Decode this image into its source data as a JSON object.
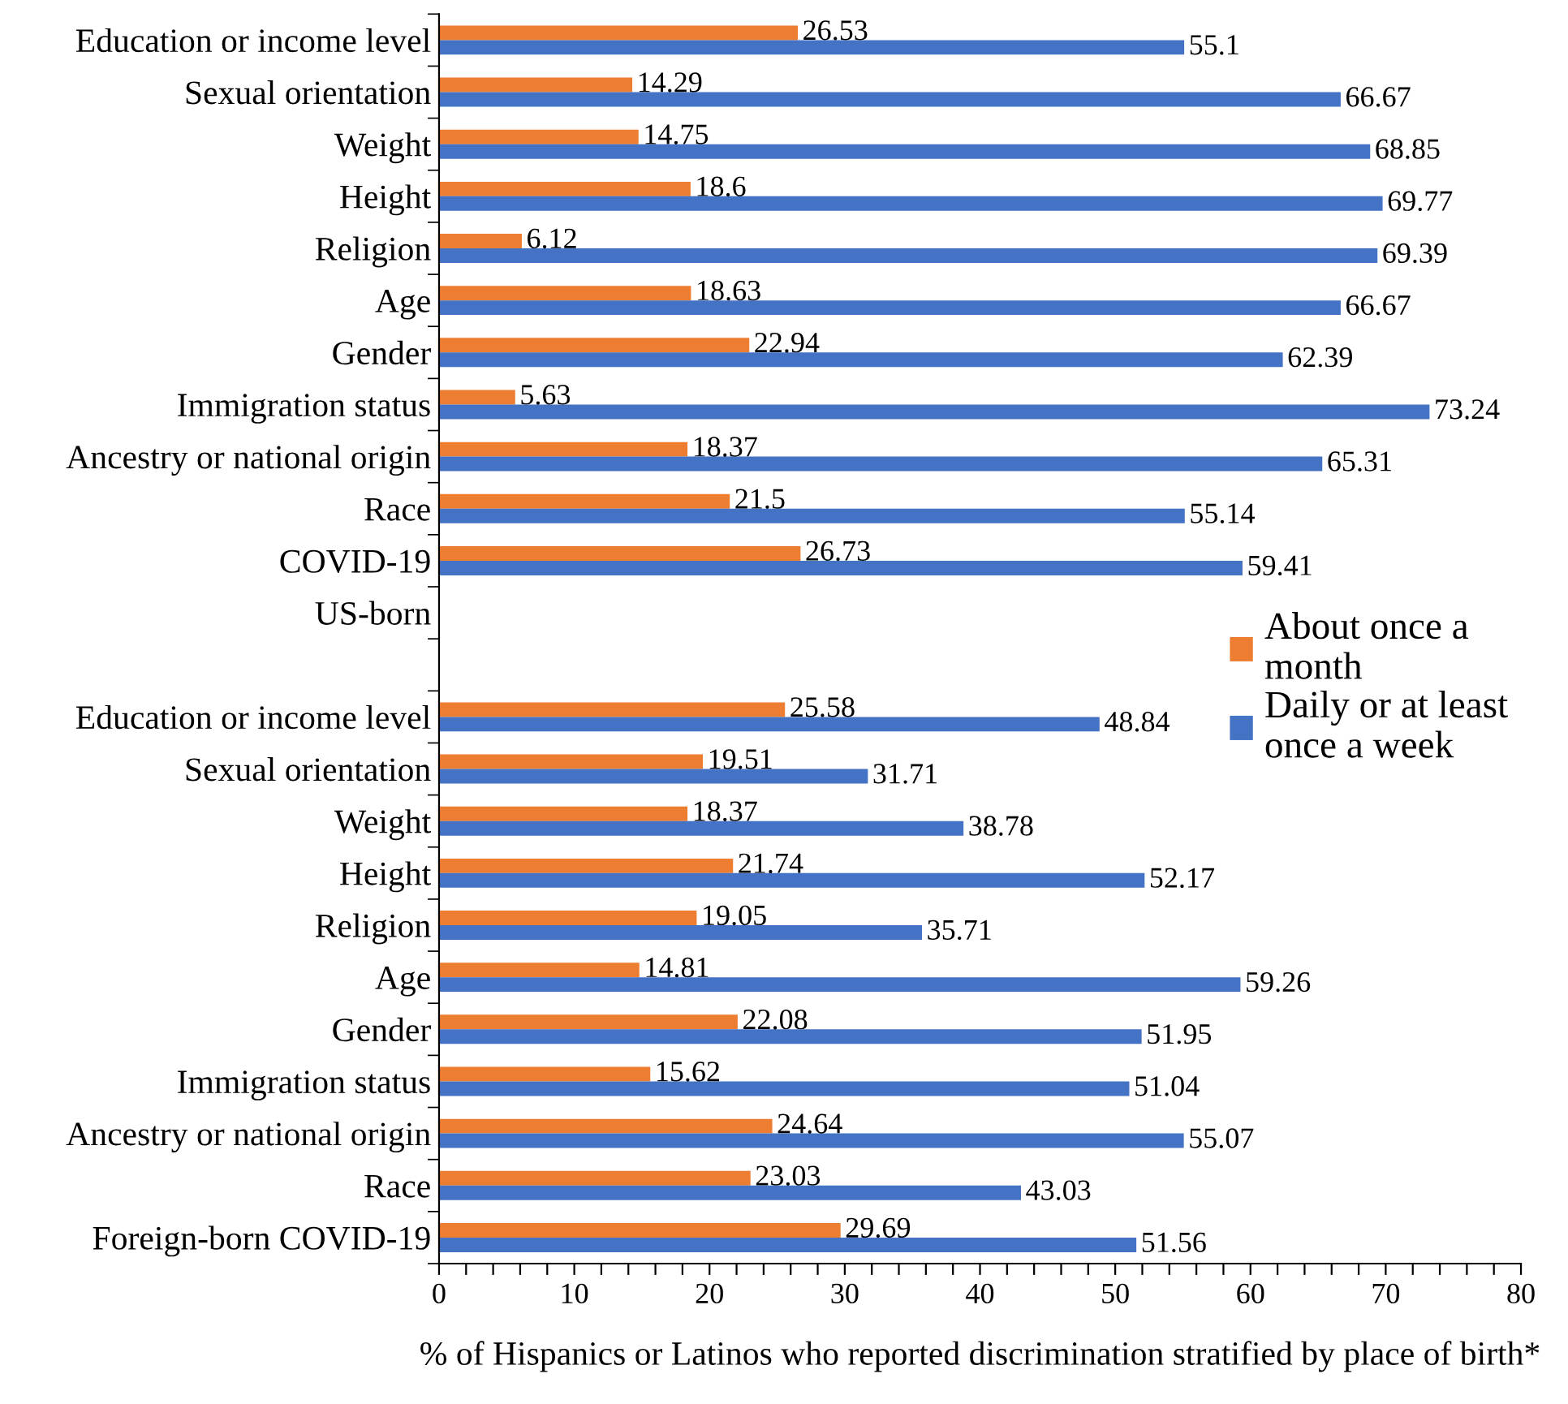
{
  "chart_data": {
    "type": "bar",
    "orientation": "horizontal",
    "xlabel": "% of Hispanics or Latinos who reported discrimination stratified by place of birth*",
    "categories": [
      "Education or income level",
      "Sexual orientation",
      "Weight",
      "Height",
      "Religion",
      "Age",
      "Gender",
      "Immigration status",
      "Ancestry or national origin",
      "Race",
      "COVID-19",
      "US-born",
      null,
      "Education or income level",
      "Sexual orientation",
      "Weight",
      "Height",
      "Religion",
      "Age",
      "Gender",
      "Immigration status",
      "Ancestry or national origin",
      "Race",
      "Foreign-born COVID-19"
    ],
    "series": [
      {
        "name": "About once a month",
        "color": "#ed7d31",
        "values": [
          26.53,
          14.29,
          14.75,
          18.6,
          6.12,
          18.63,
          22.94,
          5.63,
          18.37,
          21.5,
          26.73,
          null,
          null,
          25.58,
          19.51,
          18.37,
          21.74,
          19.05,
          14.81,
          22.08,
          15.62,
          24.64,
          23.03,
          29.69
        ]
      },
      {
        "name": "Daily or at least once a week",
        "color": "#4472c4",
        "values": [
          55.1,
          66.67,
          68.85,
          69.77,
          69.39,
          66.67,
          62.39,
          73.24,
          65.31,
          55.14,
          59.41,
          null,
          null,
          48.84,
          31.71,
          38.78,
          52.17,
          35.71,
          59.26,
          51.95,
          51.04,
          55.07,
          43.03,
          51.56
        ]
      }
    ],
    "xlim": [
      0,
      80
    ],
    "xticks": [
      0,
      {
        "value": 2,
        "label": null
      },
      {
        "value": 4,
        "label": null
      },
      {
        "value": 6,
        "label": null
      },
      {
        "value": 8,
        "label": null
      },
      10,
      {
        "value": 12,
        "label": null
      },
      {
        "value": 14,
        "label": null
      },
      {
        "value": 16,
        "label": null
      },
      {
        "value": 18,
        "label": null
      },
      20,
      {
        "value": 22,
        "label": null
      },
      {
        "value": 24,
        "label": null
      },
      {
        "value": 26,
        "label": null
      },
      {
        "value": 28,
        "label": null
      },
      30,
      {
        "value": 32,
        "label": null
      },
      {
        "value": 34,
        "label": null
      },
      {
        "value": 36,
        "label": null
      },
      {
        "value": 38,
        "label": null
      },
      40,
      {
        "value": 42,
        "label": null
      },
      {
        "value": 44,
        "label": null
      },
      {
        "value": 46,
        "label": null
      },
      {
        "value": 48,
        "label": null
      },
      50,
      {
        "value": 52,
        "label": null
      },
      {
        "value": 54,
        "label": null
      },
      {
        "value": 56,
        "label": null
      },
      {
        "value": 58,
        "label": null
      },
      60,
      {
        "value": 62,
        "label": null
      },
      {
        "value": 64,
        "label": null
      },
      {
        "value": 66,
        "label": null
      },
      {
        "value": 68,
        "label": null
      },
      70,
      {
        "value": 72,
        "label": null
      },
      {
        "value": 74,
        "label": null
      },
      {
        "value": 76,
        "label": null
      },
      {
        "value": 78,
        "label": null
      },
      80
    ],
    "data_labels": true,
    "legend": "right",
    "grid": false
  }
}
